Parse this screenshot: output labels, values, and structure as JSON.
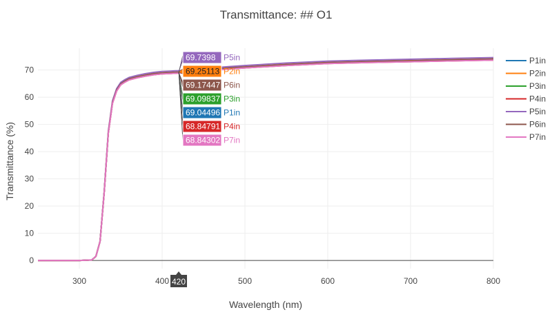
{
  "chart_data": {
    "type": "line",
    "title": "Transmittance: ## O1",
    "xlabel": "Wavelength (nm)",
    "ylabel": "Transmittance (%)",
    "xlim": [
      250,
      800
    ],
    "ylim": [
      -3,
      78
    ],
    "x_ticks": [
      300,
      400,
      500,
      600,
      700,
      800
    ],
    "y_ticks": [
      0,
      10,
      20,
      30,
      40,
      50,
      60,
      70
    ],
    "grid": true,
    "legend_position": "right",
    "x": [
      250,
      300,
      315,
      320,
      325,
      330,
      335,
      340,
      345,
      350,
      355,
      360,
      370,
      380,
      390,
      400,
      410,
      420,
      440,
      460,
      480,
      500,
      550,
      600,
      650,
      700,
      750,
      800
    ],
    "base_shape": [
      0,
      0,
      0.2,
      1.5,
      7,
      25,
      47,
      58,
      62.5,
      64.8,
      65.8,
      66.6,
      67.4,
      68.0,
      68.5,
      68.8,
      68.95,
      69.1,
      69.6,
      70.1,
      70.6,
      71.0,
      71.9,
      72.6,
      73.0,
      73.3,
      73.6,
      73.9
    ],
    "series": [
      {
        "name": "P1in",
        "color": "#1f77b4",
        "offset": -0.05,
        "hover": "69.04496"
      },
      {
        "name": "P2in",
        "color": "#ff7f0e",
        "offset": 0.15,
        "hover": "69.25113"
      },
      {
        "name": "P3in",
        "color": "#2ca02c",
        "offset": 0.0,
        "hover": "69.09837"
      },
      {
        "name": "P4in",
        "color": "#d62728",
        "offset": -0.25,
        "hover": "68.84791"
      },
      {
        "name": "P5in",
        "color": "#9467bd",
        "offset": 0.65,
        "hover": "69.7398"
      },
      {
        "name": "P6in",
        "color": "#8c564b",
        "offset": 0.1,
        "hover": "69.17447"
      },
      {
        "name": "P7in",
        "color": "#e377c2",
        "offset": -0.25,
        "hover": "68.84302"
      }
    ],
    "hover_x": 420,
    "hover_x_label": "420",
    "hover_order": [
      "P5in",
      "P2in",
      "P6in",
      "P3in",
      "P1in",
      "P4in",
      "P7in"
    ],
    "hover_values": [
      69.7398,
      69.25113,
      69.17447,
      69.09837,
      69.04496,
      68.84791,
      68.84302
    ]
  }
}
